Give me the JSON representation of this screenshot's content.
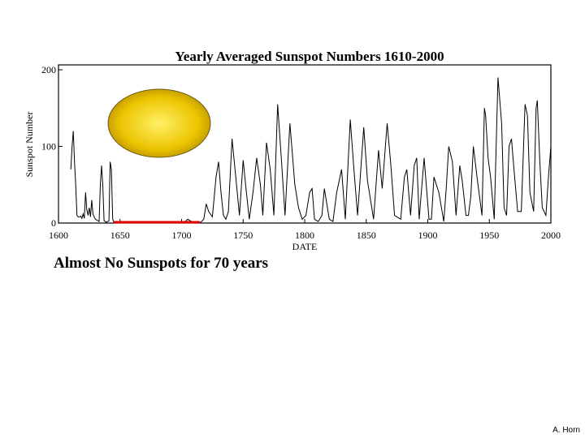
{
  "caption": "Almost No Sunspots for 70 years",
  "credit": "A. Horn",
  "colors": {
    "line": "#000000",
    "highlight": "#e00000",
    "sun_center": "#fff066",
    "sun_edge": "#b89000"
  },
  "chart_data": {
    "type": "line",
    "title": "Yearly Averaged Sunspot Numbers 1610-2000",
    "xlabel": "DATE",
    "ylabel": "Sunspot Number",
    "xlim": [
      1600,
      2000
    ],
    "ylim": [
      0,
      200
    ],
    "x_ticks": [
      1600,
      1650,
      1700,
      1750,
      1800,
      1850,
      1900,
      1950,
      2000
    ],
    "y_ticks": [
      0,
      100,
      200
    ],
    "highlight_range": [
      1645,
      1715
    ],
    "grid": false,
    "series": [
      {
        "x": [
          1610,
          1611,
          1612,
          1613,
          1614,
          1615,
          1616,
          1617,
          1618,
          1619,
          1620,
          1621,
          1622,
          1623,
          1624,
          1625,
          1626,
          1627,
          1628,
          1629,
          1630,
          1631,
          1632,
          1633,
          1634,
          1635,
          1636,
          1637,
          1638,
          1639,
          1640,
          1641,
          1642,
          1643,
          1644,
          1645,
          1650,
          1655,
          1660,
          1665,
          1670,
          1675,
          1680,
          1685,
          1690,
          1695,
          1700,
          1703,
          1705,
          1707,
          1710,
          1712,
          1715,
          1718,
          1720,
          1722,
          1725,
          1728,
          1730,
          1732,
          1734,
          1736,
          1738,
          1741,
          1744,
          1747,
          1750,
          1752,
          1755,
          1758,
          1761,
          1764,
          1766,
          1769,
          1772,
          1775,
          1778,
          1781,
          1784,
          1788,
          1792,
          1795,
          1798,
          1801,
          1804,
          1806,
          1808,
          1811,
          1814,
          1816,
          1820,
          1823,
          1826,
          1830,
          1833,
          1837,
          1840,
          1843,
          1848,
          1851,
          1856,
          1860,
          1863,
          1867,
          1870,
          1873,
          1878,
          1881,
          1883,
          1886,
          1889,
          1891,
          1893,
          1897,
          1901,
          1903,
          1905,
          1909,
          1913,
          1915,
          1917,
          1920,
          1923,
          1926,
          1928,
          1931,
          1933,
          1935,
          1937,
          1940,
          1944,
          1946,
          1947,
          1949,
          1951,
          1954,
          1957,
          1960,
          1962,
          1964,
          1966,
          1968,
          1970,
          1973,
          1976,
          1979,
          1981,
          1983,
          1986,
          1988,
          1989,
          1991,
          1993,
          1996,
          1998,
          2000
        ],
        "values": [
          70,
          100,
          120,
          80,
          50,
          10,
          8,
          8,
          9,
          6,
          12,
          6,
          40,
          18,
          10,
          20,
          8,
          30,
          12,
          8,
          5,
          4,
          3,
          2,
          50,
          75,
          50,
          3,
          2,
          1,
          2,
          3,
          80,
          70,
          5,
          1,
          0,
          0,
          0,
          0,
          0,
          0,
          0,
          0,
          0,
          0,
          0,
          2,
          5,
          3,
          1,
          2,
          0,
          5,
          25,
          15,
          8,
          60,
          80,
          40,
          10,
          5,
          15,
          110,
          60,
          10,
          82,
          50,
          5,
          40,
          85,
          50,
          10,
          105,
          70,
          10,
          155,
          85,
          10,
          130,
          50,
          20,
          5,
          10,
          40,
          45,
          5,
          2,
          10,
          45,
          5,
          2,
          40,
          70,
          5,
          135,
          70,
          10,
          125,
          55,
          5,
          95,
          45,
          130,
          75,
          10,
          5,
          60,
          70,
          10,
          75,
          85,
          5,
          85,
          5,
          5,
          60,
          40,
          2,
          45,
          100,
          80,
          10,
          75,
          55,
          10,
          10,
          35,
          100,
          60,
          10,
          150,
          140,
          85,
          60,
          5,
          190,
          130,
          20,
          10,
          100,
          110,
          70,
          15,
          15,
          155,
          140,
          40,
          15,
          150,
          160,
          80,
          20,
          10,
          60,
          100
        ]
      }
    ]
  }
}
